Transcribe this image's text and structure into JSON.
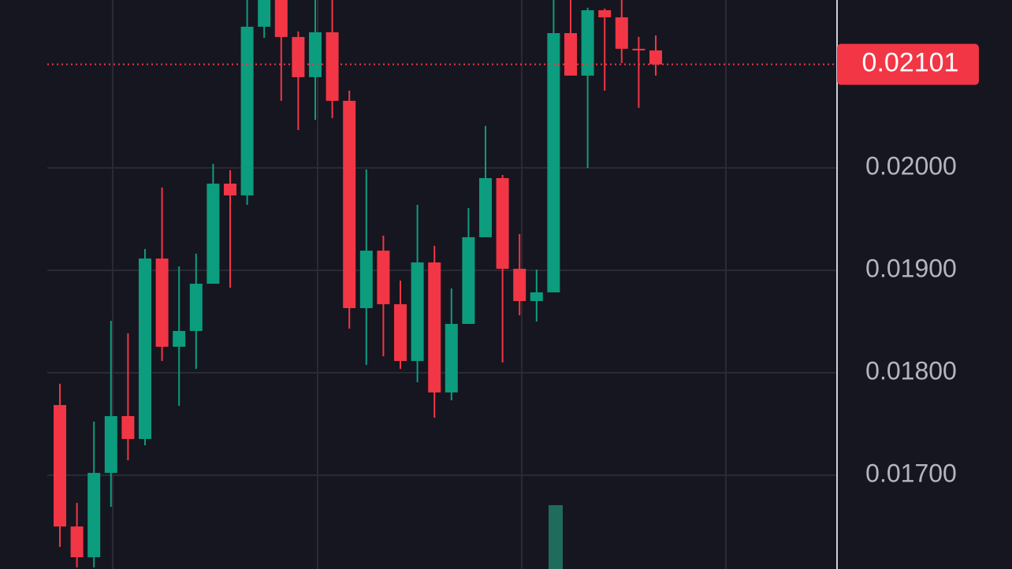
{
  "chart_data": {
    "type": "candlestick",
    "categories": [
      null,
      null,
      null,
      null,
      null,
      null,
      null,
      null,
      null,
      null,
      null,
      null,
      null,
      null,
      null,
      null,
      null,
      null,
      null,
      null,
      null,
      null,
      null,
      null,
      null,
      null,
      null,
      null,
      null,
      null,
      null,
      null,
      null,
      null,
      null,
      null
    ],
    "open": [
      0.017685,
      0.0165,
      0.0162,
      0.017023,
      0.017577,
      0.017354,
      0.019115,
      0.018254,
      0.018408,
      0.018869,
      0.019846,
      0.019731,
      0.021377,
      0.0217,
      0.021277,
      0.020885,
      0.021323,
      0.020654,
      0.018631,
      0.019192,
      0.018669,
      0.018115,
      0.019077,
      0.017808,
      0.018477,
      0.019323,
      0.0199,
      0.019015,
      0.0187,
      0.018785,
      0.021315,
      0.0209,
      0.021538,
      0.021469,
      0.021162,
      0.021146
    ],
    "high": [
      0.017892,
      0.01673,
      0.017523,
      0.018508,
      0.018385,
      0.019208,
      0.019808,
      0.019038,
      0.019162,
      0.020038,
      0.019977,
      0.0217,
      0.0218,
      0.0218,
      0.021331,
      0.0217,
      0.0217,
      0.020754,
      0.019985,
      0.019338,
      0.0189,
      0.019638,
      0.019238,
      0.018823,
      0.019608,
      0.020408,
      0.019931,
      0.019354,
      0.019008,
      0.0217,
      0.0217,
      0.021562,
      0.021554,
      0.0217,
      0.021277,
      0.021292
    ],
    "low": [
      0.0163,
      0.0161,
      0.0161,
      0.016692,
      0.017146,
      0.017292,
      0.018115,
      0.017677,
      0.018038,
      0.018869,
      0.018831,
      0.019638,
      0.021269,
      0.020654,
      0.020369,
      0.020469,
      0.020485,
      0.018431,
      0.018077,
      0.018162,
      0.018038,
      0.017908,
      0.017562,
      0.017731,
      0.018477,
      0.019323,
      0.0181,
      0.018562,
      0.0185,
      0.018785,
      0.0209,
      0.02,
      0.020754,
      0.021023,
      0.020585,
      0.0209
    ],
    "close": [
      0.0165,
      0.0162,
      0.017023,
      0.017577,
      0.017354,
      0.019115,
      0.018254,
      0.018408,
      0.018869,
      0.019846,
      0.019731,
      0.021377,
      0.02168,
      0.021277,
      0.020885,
      0.021323,
      0.020654,
      0.018631,
      0.019192,
      0.018669,
      0.018115,
      0.019077,
      0.017808,
      0.018477,
      0.019323,
      0.0199,
      0.019015,
      0.0187,
      0.018785,
      0.021315,
      0.0209,
      0.021538,
      0.021469,
      0.021162,
      0.021146,
      0.02101
    ],
    "up_color": "#0c9c7e",
    "down_color": "#f23645",
    "ylim": [
      0.016085,
      0.021638
    ],
    "yticks": [
      {
        "value": 0.017,
        "label": "0.01700"
      },
      {
        "value": 0.018,
        "label": "0.01800"
      },
      {
        "value": 0.019,
        "label": "0.01900"
      },
      {
        "value": 0.02,
        "label": "0.02000"
      }
    ],
    "grid": true,
    "last_price": {
      "value": 0.02101,
      "label": "0.02101"
    }
  }
}
